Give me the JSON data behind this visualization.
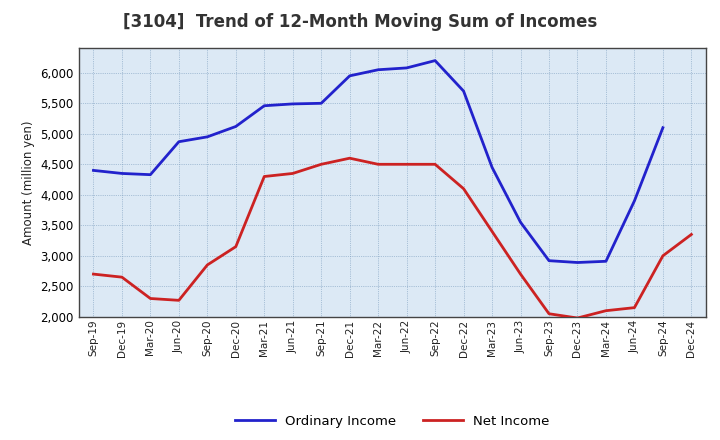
{
  "title": "[3104]  Trend of 12-Month Moving Sum of Incomes",
  "ylabel": "Amount (million yen)",
  "background_color": "#ffffff",
  "plot_background": "#dce9f5",
  "grid_color": "#7799bb",
  "x_labels": [
    "Sep-19",
    "Dec-19",
    "Mar-20",
    "Jun-20",
    "Sep-20",
    "Dec-20",
    "Mar-21",
    "Jun-21",
    "Sep-21",
    "Dec-21",
    "Mar-22",
    "Jun-22",
    "Sep-22",
    "Dec-22",
    "Mar-23",
    "Jun-23",
    "Sep-23",
    "Dec-23",
    "Mar-24",
    "Jun-24",
    "Sep-24",
    "Dec-24"
  ],
  "ordinary_income": [
    4400,
    4350,
    4330,
    4870,
    4950,
    5120,
    5460,
    5490,
    5500,
    5950,
    6050,
    6080,
    6200,
    5700,
    4450,
    3550,
    2920,
    2890,
    2910,
    3900,
    5100,
    null
  ],
  "net_income": [
    2700,
    2650,
    2300,
    2270,
    2850,
    3150,
    4300,
    4350,
    4500,
    4600,
    4500,
    4500,
    4500,
    4100,
    3400,
    2700,
    2050,
    1980,
    2100,
    2150,
    3000,
    3350
  ],
  "ylim": [
    2000,
    6400
  ],
  "yticks": [
    2000,
    2500,
    3000,
    3500,
    4000,
    4500,
    5000,
    5500,
    6000
  ],
  "ordinary_color": "#2222cc",
  "net_color": "#cc2222",
  "line_width": 2.0,
  "title_color": "#333333",
  "title_fontsize": 12
}
